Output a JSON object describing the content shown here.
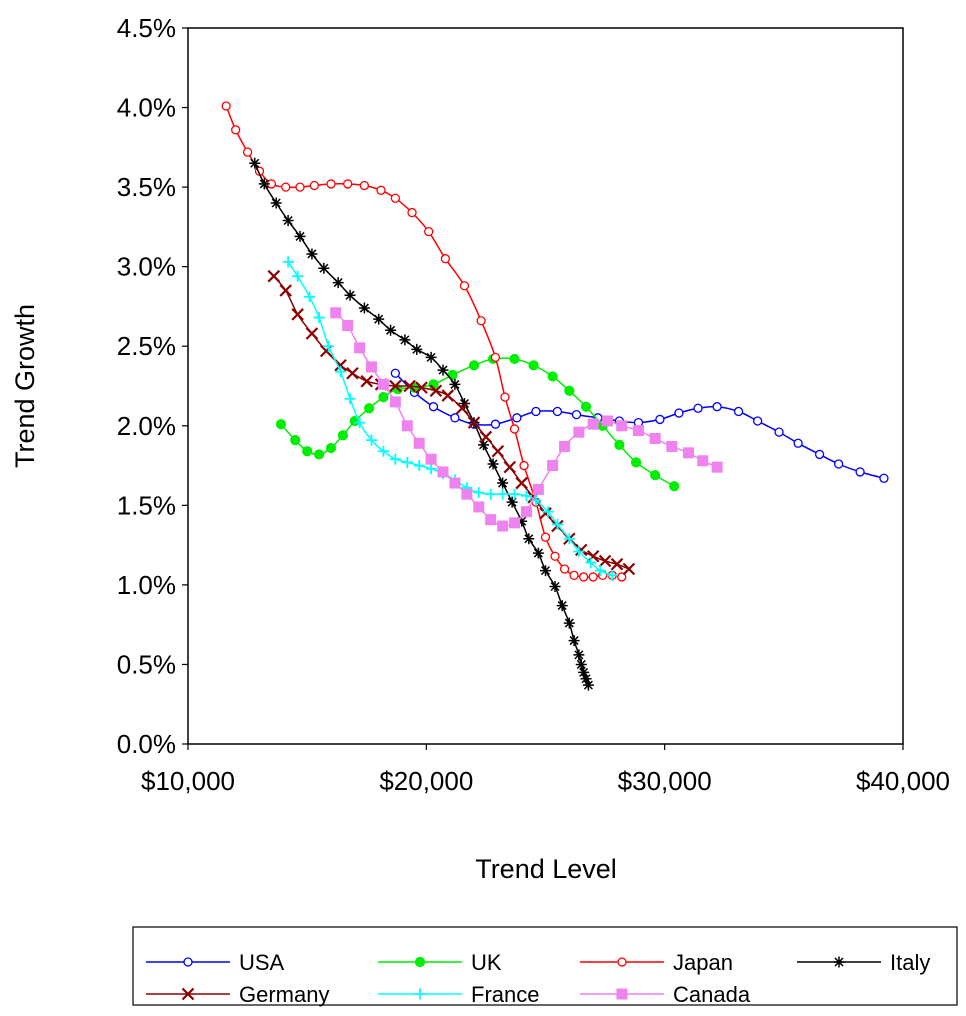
{
  "chart_data": {
    "type": "line",
    "title": "",
    "xlabel": "Trend Level",
    "ylabel": "Trend Growth",
    "xlim": [
      10000,
      40000
    ],
    "ylim": [
      0.0,
      4.5
    ],
    "x_ticks": [
      10000,
      20000,
      30000,
      40000
    ],
    "x_tick_labels": [
      "$10,000",
      "$20,000",
      "$30,000",
      "$40,000"
    ],
    "y_ticks": [
      0.0,
      0.5,
      1.0,
      1.5,
      2.0,
      2.5,
      3.0,
      3.5,
      4.0,
      4.5
    ],
    "y_tick_labels": [
      "0.0%",
      "0.5%",
      "1.0%",
      "1.5%",
      "2.0%",
      "2.5%",
      "3.0%",
      "3.5%",
      "4.0%",
      "4.5%"
    ],
    "grid": false,
    "legend_position": "bottom",
    "series": [
      {
        "name": "USA",
        "color": "#0000ff",
        "marker": "open-circle",
        "points": [
          [
            18700,
            2.33
          ],
          [
            19500,
            2.21
          ],
          [
            20300,
            2.12
          ],
          [
            21200,
            2.05
          ],
          [
            22000,
            2.01
          ],
          [
            22900,
            2.01
          ],
          [
            23800,
            2.05
          ],
          [
            24600,
            2.09
          ],
          [
            25500,
            2.09
          ],
          [
            26300,
            2.07
          ],
          [
            27200,
            2.05
          ],
          [
            28100,
            2.03
          ],
          [
            28900,
            2.02
          ],
          [
            29800,
            2.04
          ],
          [
            30600,
            2.08
          ],
          [
            31400,
            2.11
          ],
          [
            32200,
            2.12
          ],
          [
            33100,
            2.09
          ],
          [
            33900,
            2.03
          ],
          [
            34800,
            1.96
          ],
          [
            35600,
            1.89
          ],
          [
            36500,
            1.82
          ],
          [
            37300,
            1.76
          ],
          [
            38200,
            1.71
          ],
          [
            39200,
            1.67
          ]
        ]
      },
      {
        "name": "UK",
        "color": "#00ee00",
        "marker": "filled-circle",
        "points": [
          [
            13900,
            2.01
          ],
          [
            14500,
            1.91
          ],
          [
            15000,
            1.84
          ],
          [
            15500,
            1.82
          ],
          [
            16000,
            1.86
          ],
          [
            16500,
            1.94
          ],
          [
            17000,
            2.03
          ],
          [
            17600,
            2.11
          ],
          [
            18200,
            2.18
          ],
          [
            18800,
            2.23
          ],
          [
            19500,
            2.24
          ],
          [
            20300,
            2.26
          ],
          [
            21100,
            2.32
          ],
          [
            22000,
            2.38
          ],
          [
            22800,
            2.42
          ],
          [
            23700,
            2.42
          ],
          [
            24500,
            2.38
          ],
          [
            25300,
            2.31
          ],
          [
            26000,
            2.22
          ],
          [
            26700,
            2.12
          ],
          [
            27400,
            2.0
          ],
          [
            28100,
            1.88
          ],
          [
            28800,
            1.77
          ],
          [
            29600,
            1.69
          ],
          [
            30400,
            1.62
          ]
        ]
      },
      {
        "name": "Japan",
        "color": "#ff0000",
        "marker": "open-circle",
        "points": [
          [
            11600,
            4.01
          ],
          [
            12000,
            3.86
          ],
          [
            12500,
            3.72
          ],
          [
            13000,
            3.6
          ],
          [
            13500,
            3.52
          ],
          [
            14100,
            3.5
          ],
          [
            14700,
            3.5
          ],
          [
            15300,
            3.51
          ],
          [
            16000,
            3.52
          ],
          [
            16700,
            3.52
          ],
          [
            17400,
            3.51
          ],
          [
            18100,
            3.48
          ],
          [
            18700,
            3.43
          ],
          [
            19400,
            3.34
          ],
          [
            20100,
            3.22
          ],
          [
            20800,
            3.05
          ],
          [
            21600,
            2.88
          ],
          [
            22300,
            2.66
          ],
          [
            22900,
            2.43
          ],
          [
            23300,
            2.18
          ],
          [
            23700,
            1.98
          ],
          [
            24100,
            1.75
          ],
          [
            24600,
            1.52
          ],
          [
            25000,
            1.3
          ],
          [
            25400,
            1.18
          ],
          [
            25800,
            1.1
          ],
          [
            26200,
            1.06
          ],
          [
            26600,
            1.05
          ],
          [
            27000,
            1.05
          ],
          [
            27400,
            1.06
          ],
          [
            27800,
            1.06
          ],
          [
            28200,
            1.05
          ]
        ]
      },
      {
        "name": "Italy",
        "color": "#000000",
        "marker": "star",
        "points": [
          [
            12800,
            3.65
          ],
          [
            13200,
            3.52
          ],
          [
            13700,
            3.4
          ],
          [
            14200,
            3.29
          ],
          [
            14700,
            3.19
          ],
          [
            15200,
            3.08
          ],
          [
            15700,
            2.99
          ],
          [
            16300,
            2.9
          ],
          [
            16800,
            2.82
          ],
          [
            17400,
            2.74
          ],
          [
            18000,
            2.67
          ],
          [
            18500,
            2.6
          ],
          [
            19100,
            2.54
          ],
          [
            19600,
            2.48
          ],
          [
            20200,
            2.43
          ],
          [
            20700,
            2.35
          ],
          [
            21200,
            2.26
          ],
          [
            21600,
            2.14
          ],
          [
            22000,
            2.02
          ],
          [
            22400,
            1.88
          ],
          [
            22800,
            1.76
          ],
          [
            23200,
            1.64
          ],
          [
            23600,
            1.52
          ],
          [
            24000,
            1.4
          ],
          [
            24300,
            1.29
          ],
          [
            24700,
            1.2
          ],
          [
            25000,
            1.09
          ],
          [
            25400,
            0.99
          ],
          [
            25700,
            0.87
          ],
          [
            26000,
            0.76
          ],
          [
            26200,
            0.65
          ],
          [
            26400,
            0.56
          ],
          [
            26500,
            0.5
          ],
          [
            26600,
            0.45
          ],
          [
            26700,
            0.41
          ],
          [
            26800,
            0.37
          ]
        ]
      },
      {
        "name": "Germany",
        "color": "#8b0000",
        "marker": "x",
        "points": [
          [
            13600,
            2.94
          ],
          [
            14100,
            2.85
          ],
          [
            14600,
            2.7
          ],
          [
            15200,
            2.58
          ],
          [
            15800,
            2.47
          ],
          [
            16400,
            2.38
          ],
          [
            16900,
            2.33
          ],
          [
            17500,
            2.28
          ],
          [
            18100,
            2.26
          ],
          [
            18700,
            2.25
          ],
          [
            19300,
            2.25
          ],
          [
            19800,
            2.24
          ],
          [
            20400,
            2.22
          ],
          [
            20900,
            2.19
          ],
          [
            21500,
            2.11
          ],
          [
            22000,
            2.02
          ],
          [
            22500,
            1.93
          ],
          [
            23000,
            1.84
          ],
          [
            23500,
            1.74
          ],
          [
            24000,
            1.64
          ],
          [
            24500,
            1.55
          ],
          [
            25000,
            1.45
          ],
          [
            25500,
            1.37
          ],
          [
            26000,
            1.29
          ],
          [
            26500,
            1.22
          ],
          [
            27000,
            1.18
          ],
          [
            27500,
            1.15
          ],
          [
            28000,
            1.13
          ],
          [
            28500,
            1.1
          ]
        ]
      },
      {
        "name": "France",
        "color": "#00ffff",
        "marker": "plus",
        "points": [
          [
            14200,
            3.03
          ],
          [
            14600,
            2.94
          ],
          [
            15100,
            2.81
          ],
          [
            15500,
            2.68
          ],
          [
            15900,
            2.5
          ],
          [
            16400,
            2.34
          ],
          [
            16800,
            2.17
          ],
          [
            17200,
            2.02
          ],
          [
            17700,
            1.91
          ],
          [
            18200,
            1.84
          ],
          [
            18700,
            1.79
          ],
          [
            19200,
            1.77
          ],
          [
            19700,
            1.75
          ],
          [
            20200,
            1.73
          ],
          [
            20700,
            1.7
          ],
          [
            21200,
            1.66
          ],
          [
            21700,
            1.61
          ],
          [
            22200,
            1.58
          ],
          [
            22700,
            1.57
          ],
          [
            23200,
            1.57
          ],
          [
            23700,
            1.57
          ],
          [
            24200,
            1.56
          ],
          [
            24600,
            1.53
          ],
          [
            25100,
            1.46
          ],
          [
            25500,
            1.38
          ],
          [
            26000,
            1.29
          ],
          [
            26400,
            1.21
          ],
          [
            26900,
            1.14
          ],
          [
            27300,
            1.09
          ],
          [
            27800,
            1.06
          ]
        ]
      },
      {
        "name": "Canada",
        "color": "#ee82ee",
        "marker": "filled-square",
        "points": [
          [
            16200,
            2.71
          ],
          [
            16700,
            2.63
          ],
          [
            17200,
            2.49
          ],
          [
            17700,
            2.37
          ],
          [
            18200,
            2.26
          ],
          [
            18700,
            2.15
          ],
          [
            19200,
            2.0
          ],
          [
            19700,
            1.89
          ],
          [
            20200,
            1.79
          ],
          [
            20700,
            1.71
          ],
          [
            21200,
            1.64
          ],
          [
            21700,
            1.57
          ],
          [
            22200,
            1.49
          ],
          [
            22700,
            1.41
          ],
          [
            23200,
            1.37
          ],
          [
            23700,
            1.39
          ],
          [
            24200,
            1.46
          ],
          [
            24700,
            1.6
          ],
          [
            25300,
            1.75
          ],
          [
            25800,
            1.87
          ],
          [
            26400,
            1.96
          ],
          [
            27000,
            2.01
          ],
          [
            27600,
            2.03
          ],
          [
            28200,
            2.0
          ],
          [
            28900,
            1.97
          ],
          [
            29600,
            1.92
          ],
          [
            30300,
            1.87
          ],
          [
            31000,
            1.83
          ],
          [
            31600,
            1.78
          ],
          [
            32200,
            1.74
          ]
        ]
      }
    ]
  }
}
